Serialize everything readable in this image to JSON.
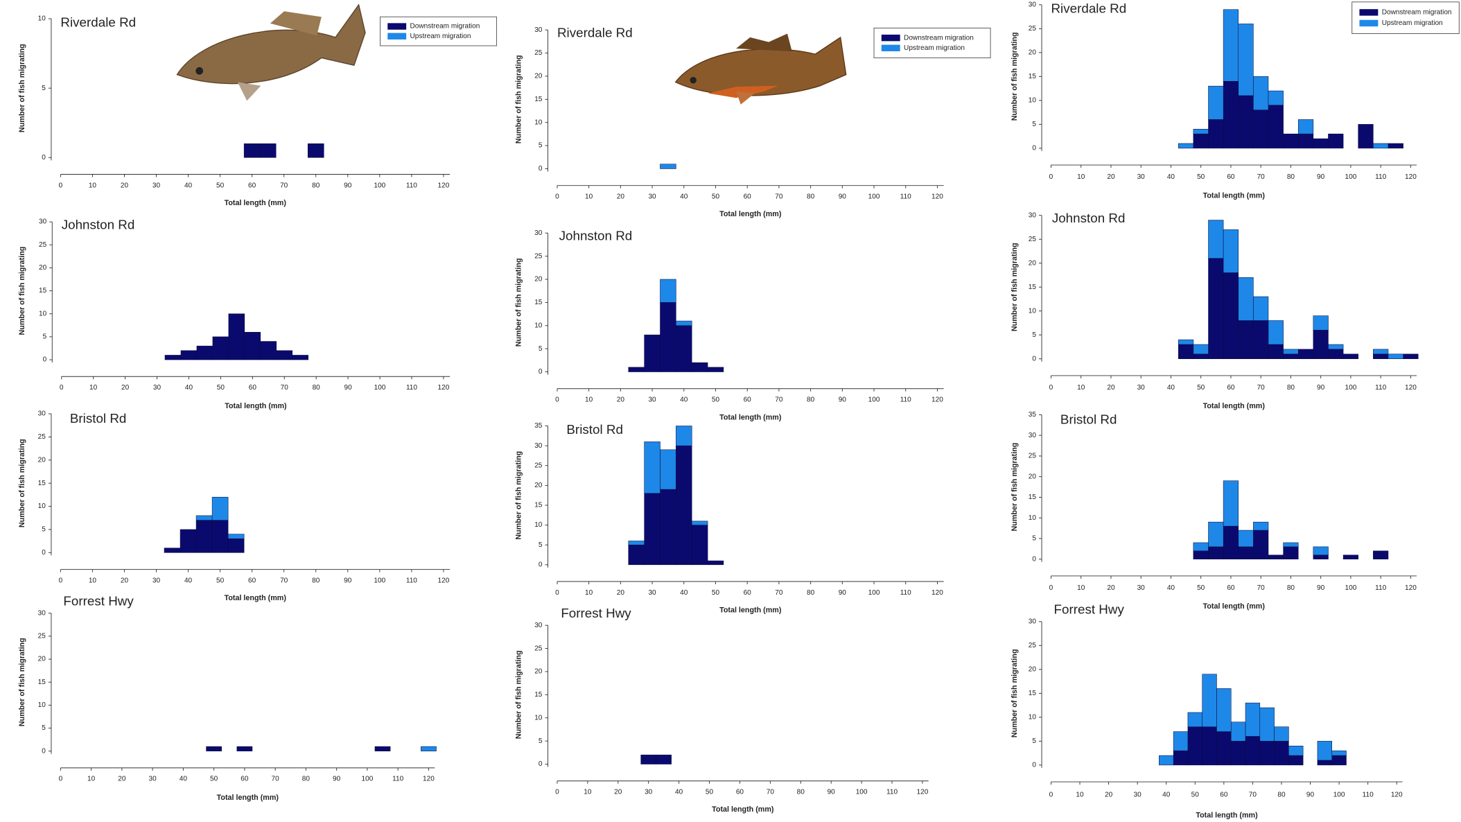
{
  "chart_data": [
    {
      "type": "histogram",
      "title": "Riverdale Rd",
      "xlabel": "Total length (mm)",
      "ylabel": "Number of fish migrating",
      "bins": [
        57.5,
        62.5,
        67.5,
        72.5,
        77.5,
        82.5
      ],
      "series": [
        {
          "name": "Downstream migration",
          "color": "#0a0a6e",
          "values": [
            1,
            1,
            0,
            0,
            1
          ]
        },
        {
          "name": "Upstream migration",
          "color": "#1e88e8",
          "values": [
            0,
            0,
            0,
            0,
            0
          ]
        }
      ],
      "xlim": [
        0,
        122
      ],
      "ylim": [
        0,
        10
      ],
      "xticks": [
        0,
        10,
        20,
        30,
        40,
        50,
        60,
        70,
        80,
        90,
        100,
        110,
        120
      ],
      "yticks": [
        0,
        5,
        10
      ],
      "legend": "top right"
    },
    {
      "type": "histogram",
      "title": "Riverdale Rd",
      "xlabel": "Total length (mm)",
      "ylabel": "Number of fish migrating",
      "bins": [
        32.5,
        37.5
      ],
      "series": [
        {
          "name": "Downstream migration",
          "color": "#0a0a6e",
          "values": [
            0
          ]
        },
        {
          "name": "Upstream migration",
          "color": "#1e88e8",
          "values": [
            1
          ]
        }
      ],
      "xlim": [
        0,
        122
      ],
      "ylim": [
        0,
        30
      ],
      "xticks": [
        0,
        10,
        20,
        30,
        40,
        50,
        60,
        70,
        80,
        90,
        100,
        110,
        120
      ],
      "yticks": [
        0,
        5,
        10,
        15,
        20,
        25,
        30
      ],
      "legend": "top right"
    },
    {
      "type": "histogram",
      "title": "Riverdale Rd",
      "xlabel": "Total length (mm)",
      "ylabel": "Number of fish migrating",
      "bins": [
        42.5,
        47.5,
        52.5,
        57.5,
        62.5,
        67.5,
        72.5,
        77.5,
        82.5,
        87.5,
        92.5,
        97.5,
        102.5,
        107.5,
        112.5,
        117.5
      ],
      "series": [
        {
          "name": "Downstream migration",
          "color": "#0a0a6e",
          "values": [
            0,
            3,
            6,
            14,
            11,
            8,
            9,
            3,
            3,
            2,
            3,
            0,
            5,
            0,
            1
          ]
        },
        {
          "name": "Upstream migration",
          "color": "#1e88e8",
          "values": [
            1,
            1,
            7,
            15,
            15,
            7,
            3,
            0,
            3,
            0,
            0,
            0,
            0,
            1,
            0
          ]
        }
      ],
      "xlim": [
        0,
        122
      ],
      "ylim": [
        0,
        30
      ],
      "xticks": [
        0,
        10,
        20,
        30,
        40,
        50,
        60,
        70,
        80,
        90,
        100,
        110,
        120
      ],
      "yticks": [
        0,
        5,
        10,
        15,
        20,
        25,
        30
      ],
      "legend": "top right"
    },
    {
      "type": "histogram",
      "title": "Johnston Rd",
      "xlabel": "Total length (mm)",
      "ylabel": "Number of fish migrating",
      "bins": [
        32.5,
        37.5,
        42.5,
        47.5,
        52.5,
        57.5,
        62.5,
        67.5,
        72.5,
        77.5
      ],
      "series": [
        {
          "color": "#0a0a6e",
          "values": [
            1,
            2,
            3,
            5,
            10,
            6,
            4,
            2,
            1
          ]
        },
        {
          "color": "#1e88e8",
          "values": [
            0,
            0,
            0,
            0,
            0,
            0,
            0,
            0,
            0
          ]
        }
      ],
      "xlim": [
        0,
        122
      ],
      "ylim": [
        0,
        30
      ],
      "xticks": [
        0,
        10,
        20,
        30,
        40,
        50,
        60,
        70,
        80,
        90,
        100,
        110,
        120
      ],
      "yticks": [
        0,
        5,
        10,
        15,
        20,
        25,
        30
      ]
    },
    {
      "type": "histogram",
      "title": "Johnston Rd",
      "xlabel": "Total length (mm)",
      "ylabel": "Number of fish migrating",
      "bins": [
        22.5,
        27.5,
        32.5,
        37.5,
        42.5,
        47.5,
        52.5
      ],
      "series": [
        {
          "color": "#0a0a6e",
          "values": [
            1,
            8,
            15,
            10,
            2,
            1
          ]
        },
        {
          "color": "#1e88e8",
          "values": [
            0,
            0,
            5,
            1,
            0,
            0
          ]
        }
      ],
      "xlim": [
        0,
        122
      ],
      "ylim": [
        0,
        30
      ],
      "xticks": [
        0,
        10,
        20,
        30,
        40,
        50,
        60,
        70,
        80,
        90,
        100,
        110,
        120
      ],
      "yticks": [
        0,
        5,
        10,
        15,
        20,
        25,
        30
      ]
    },
    {
      "type": "histogram",
      "title": "Johnston Rd",
      "xlabel": "Total length (mm)",
      "ylabel": "Number of fish migrating",
      "bins": [
        42.5,
        47.5,
        52.5,
        57.5,
        62.5,
        67.5,
        72.5,
        77.5,
        82.5,
        87.5,
        92.5,
        97.5,
        102.5,
        107.5,
        112.5,
        117.5,
        122.5
      ],
      "series": [
        {
          "color": "#0a0a6e",
          "values": [
            3,
            1,
            21,
            18,
            8,
            8,
            3,
            1,
            2,
            6,
            2,
            1,
            0,
            1,
            0,
            1
          ]
        },
        {
          "color": "#1e88e8",
          "values": [
            1,
            2,
            8,
            9,
            9,
            5,
            5,
            1,
            0,
            3,
            1,
            0,
            0,
            1,
            1,
            0
          ]
        }
      ],
      "xlim": [
        0,
        122
      ],
      "ylim": [
        0,
        30
      ],
      "xticks": [
        0,
        10,
        20,
        30,
        40,
        50,
        60,
        70,
        80,
        90,
        100,
        110,
        120
      ],
      "yticks": [
        0,
        5,
        10,
        15,
        20,
        25,
        30
      ]
    },
    {
      "type": "histogram",
      "title": "Bristol Rd",
      "xlabel": "Total length (mm)",
      "ylabel": "Number of fish migrating",
      "bins": [
        32.5,
        37.5,
        42.5,
        47.5,
        52.5,
        57.5
      ],
      "series": [
        {
          "color": "#0a0a6e",
          "values": [
            1,
            5,
            7,
            7,
            3
          ]
        },
        {
          "color": "#1e88e8",
          "values": [
            0,
            0,
            1,
            5,
            1
          ]
        }
      ],
      "xlim": [
        0,
        122
      ],
      "ylim": [
        0,
        30
      ],
      "xticks": [
        0,
        10,
        20,
        30,
        40,
        50,
        60,
        70,
        80,
        90,
        100,
        110,
        120
      ],
      "yticks": [
        0,
        5,
        10,
        15,
        20,
        25,
        30
      ]
    },
    {
      "type": "histogram",
      "title": "Bristol Rd",
      "xlabel": "Total length (mm)",
      "ylabel": "Number of fish migrating",
      "bins": [
        22.5,
        27.5,
        32.5,
        37.5,
        42.5,
        47.5,
        52.5
      ],
      "series": [
        {
          "color": "#0a0a6e",
          "values": [
            5,
            18,
            19,
            30,
            10,
            1
          ]
        },
        {
          "color": "#1e88e8",
          "values": [
            1,
            13,
            10,
            5,
            1,
            0
          ]
        }
      ],
      "xlim": [
        0,
        122
      ],
      "ylim": [
        0,
        35
      ],
      "xticks": [
        0,
        10,
        20,
        30,
        40,
        50,
        60,
        70,
        80,
        90,
        100,
        110,
        120
      ],
      "yticks": [
        0,
        5,
        10,
        15,
        20,
        25,
        30,
        35
      ]
    },
    {
      "type": "histogram",
      "title": "Bristol Rd",
      "xlabel": "Total length (mm)",
      "ylabel": "Number of fish migrating",
      "bins": [
        47.5,
        52.5,
        57.5,
        62.5,
        67.5,
        72.5,
        77.5,
        82.5,
        87.5,
        92.5,
        97.5,
        102.5,
        107.5,
        112.5
      ],
      "series": [
        {
          "color": "#0a0a6e",
          "values": [
            2,
            3,
            8,
            3,
            7,
            1,
            3,
            0,
            1,
            0,
            1,
            0,
            2
          ]
        },
        {
          "color": "#1e88e8",
          "values": [
            2,
            6,
            11,
            4,
            2,
            0,
            1,
            0,
            2,
            0,
            0,
            0,
            0
          ]
        }
      ],
      "xlim": [
        0,
        122
      ],
      "ylim": [
        0,
        35
      ],
      "xticks": [
        0,
        10,
        20,
        30,
        40,
        50,
        60,
        70,
        80,
        90,
        100,
        110,
        120
      ],
      "yticks": [
        0,
        5,
        10,
        15,
        20,
        25,
        30,
        35
      ]
    },
    {
      "type": "histogram",
      "title": "Forrest Hwy",
      "xlabel": "Total length (mm)",
      "ylabel": "Number of fish migrating",
      "bins": [
        47.5,
        52.5,
        57.5,
        62.5,
        67.5,
        72.5,
        77.5,
        82.5,
        87.5,
        92.5,
        97.5,
        102.5,
        107.5,
        112.5,
        117.5,
        122.5
      ],
      "series": [
        {
          "color": "#0a0a6e",
          "values": [
            1,
            0,
            1,
            0,
            0,
            0,
            0,
            0,
            0,
            0,
            0,
            1,
            0,
            0,
            0
          ]
        },
        {
          "color": "#1e88e8",
          "values": [
            0,
            0,
            0,
            0,
            0,
            0,
            0,
            0,
            0,
            0,
            0,
            0,
            0,
            0,
            1
          ]
        }
      ],
      "xlim": [
        0,
        122
      ],
      "ylim": [
        0,
        30
      ],
      "xticks": [
        0,
        10,
        20,
        30,
        40,
        50,
        60,
        70,
        80,
        90,
        100,
        110,
        120
      ],
      "yticks": [
        0,
        5,
        10,
        15,
        20,
        25,
        30
      ]
    },
    {
      "type": "histogram",
      "title": "Forrest Hwy",
      "xlabel": "Total length (mm)",
      "ylabel": "Number of fish migrating",
      "bins": [
        27.5,
        32.5,
        37.5
      ],
      "series": [
        {
          "color": "#0a0a6e",
          "values": [
            2,
            2
          ]
        },
        {
          "color": "#1e88e8",
          "values": [
            0,
            0
          ]
        }
      ],
      "xlim": [
        0,
        122
      ],
      "ylim": [
        0,
        30
      ],
      "xticks": [
        0,
        10,
        20,
        30,
        40,
        50,
        60,
        70,
        80,
        90,
        100,
        110,
        120
      ],
      "yticks": [
        0,
        5,
        10,
        15,
        20,
        25,
        30
      ]
    },
    {
      "type": "histogram",
      "title": "Forrest Hwy",
      "xlabel": "Total length (mm)",
      "ylabel": "Number of fish migrating",
      "bins": [
        37.5,
        42.5,
        47.5,
        52.5,
        57.5,
        62.5,
        67.5,
        72.5,
        77.5,
        82.5,
        87.5,
        92.5,
        97.5,
        102.5
      ],
      "series": [
        {
          "color": "#0a0a6e",
          "values": [
            0,
            3,
            8,
            8,
            7,
            5,
            6,
            5,
            5,
            2,
            0,
            1,
            2
          ]
        },
        {
          "color": "#1e88e8",
          "values": [
            2,
            4,
            3,
            11,
            9,
            4,
            7,
            7,
            3,
            2,
            0,
            4,
            1
          ]
        }
      ],
      "xlim": [
        0,
        122
      ],
      "ylim": [
        0,
        30
      ],
      "xticks": [
        0,
        10,
        20,
        30,
        40,
        50,
        60,
        70,
        80,
        90,
        100,
        110,
        120
      ],
      "yticks": [
        0,
        5,
        10,
        15,
        20,
        25,
        30
      ]
    }
  ]
}
